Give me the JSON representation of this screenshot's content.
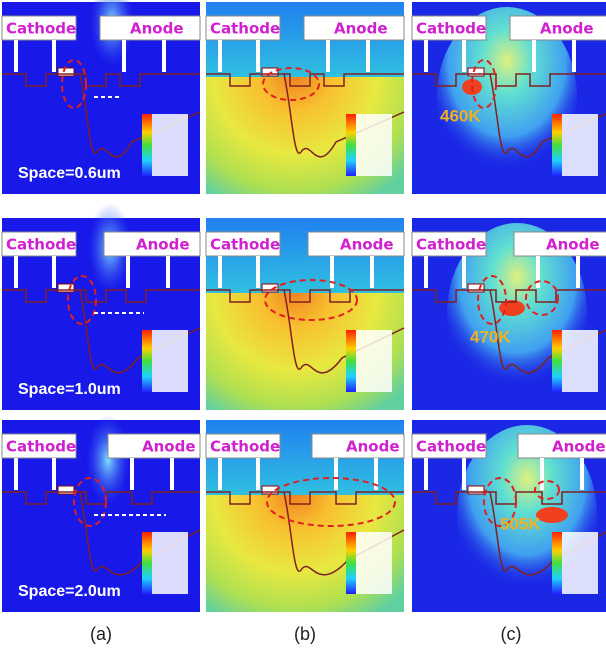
{
  "electrodes": {
    "cathode": "Cathode",
    "anode": "Anode"
  },
  "rows": [
    {
      "space": "Space=0.6um",
      "temperature": "460K"
    },
    {
      "space": "Space=1.0um",
      "temperature": "470K"
    },
    {
      "space": "Space=2.0um",
      "temperature": "505K"
    }
  ],
  "columns": [
    "(a)",
    "(b)",
    "(c)"
  ]
}
